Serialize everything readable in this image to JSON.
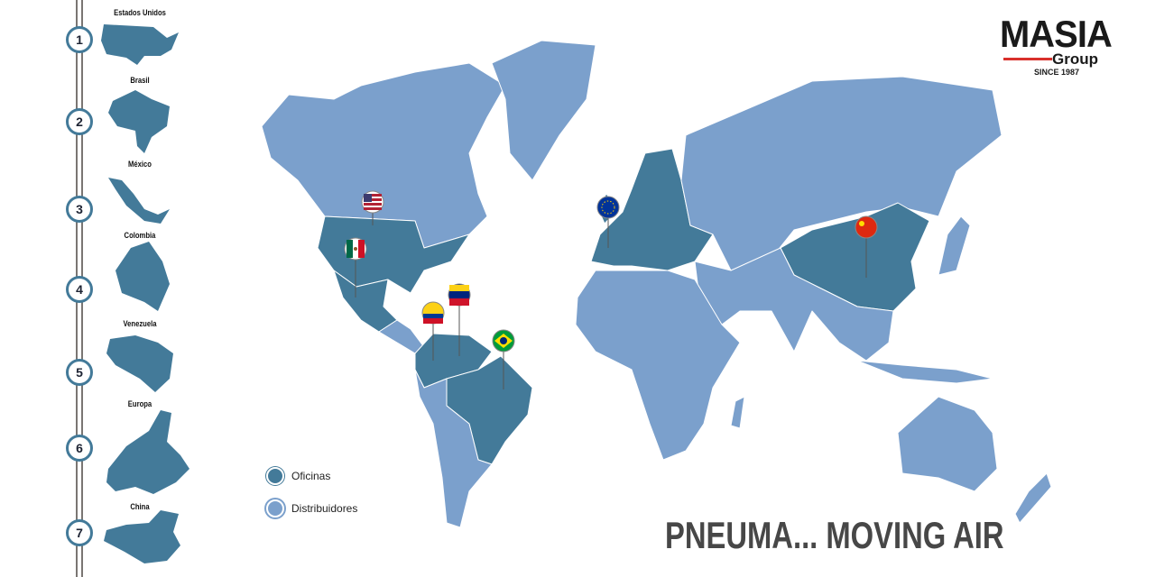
{
  "logo": {
    "brand": "MASIA",
    "sub": "Group",
    "since": "SINCE 1987",
    "accent": "#d9302b"
  },
  "countries": [
    {
      "num": "1",
      "name": "Estados Unidos"
    },
    {
      "num": "2",
      "name": "Brasil"
    },
    {
      "num": "3",
      "name": "México"
    },
    {
      "num": "4",
      "name": "Colombia"
    },
    {
      "num": "5",
      "name": "Venezuela"
    },
    {
      "num": "6",
      "name": "Europa"
    },
    {
      "num": "7",
      "name": "China"
    }
  ],
  "legend": {
    "offices": "Oficinas",
    "distributors": "Distribuidores"
  },
  "colors": {
    "offices": "#437a99",
    "distributors": "#7ba0cc"
  },
  "pins": [
    "usa-flag-icon",
    "mexico-flag-icon",
    "venezuela-flag-icon",
    "colombia-flag-icon",
    "brazil-flag-icon",
    "eu-flag-icon",
    "china-flag-icon"
  ],
  "tagline": "PNEUMA... MOVING AIR"
}
